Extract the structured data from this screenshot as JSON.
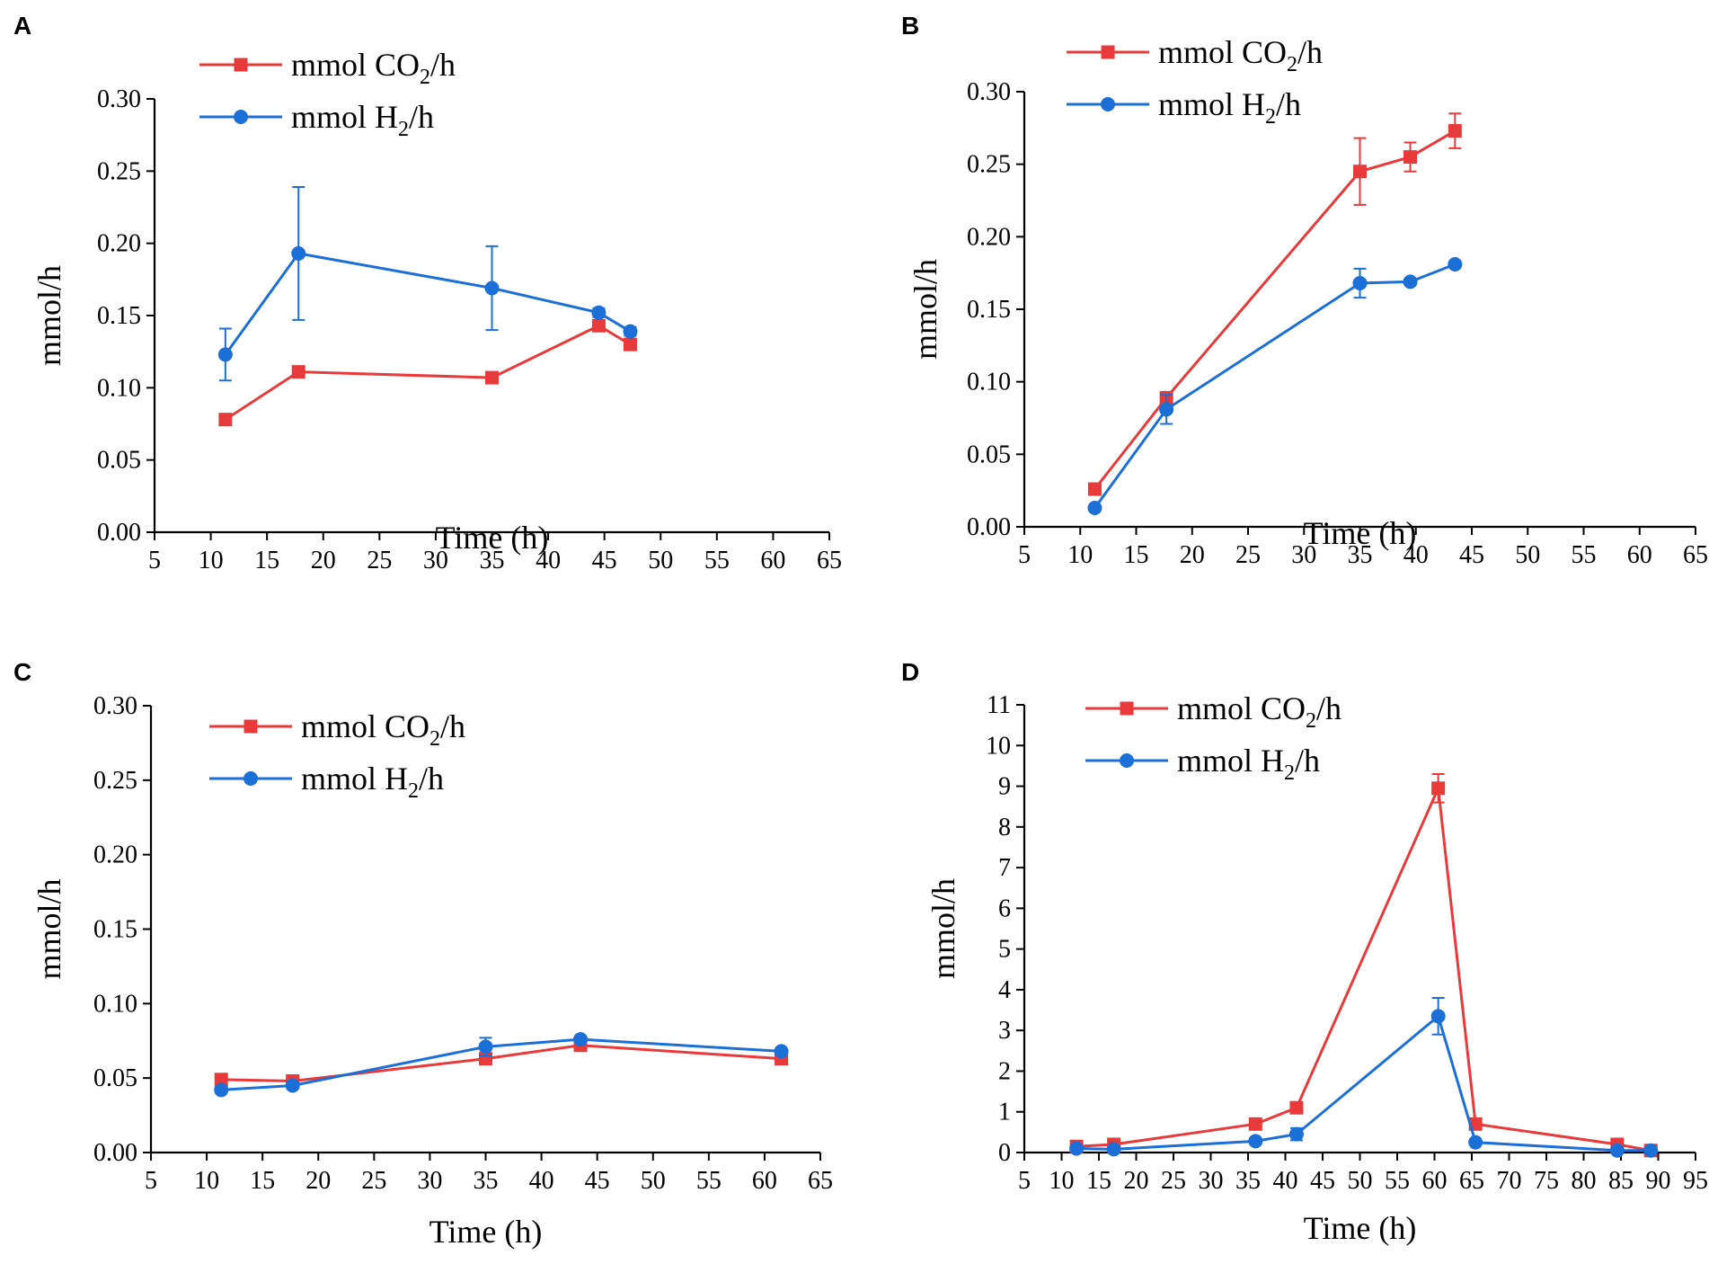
{
  "colors": {
    "co2": "#e8393b",
    "h2": "#1b6fd6"
  },
  "legend": {
    "co2": {
      "prefix": "mmol CO",
      "sub": "2",
      "suffix": "/h"
    },
    "h2": {
      "prefix": "mmol H",
      "sub": "2",
      "suffix": "/h"
    }
  },
  "chart_data": [
    {
      "type": "line",
      "panel": "A",
      "xlabel": "Time (h)",
      "ylabel": "mmol/h",
      "xlim": [
        5,
        65
      ],
      "ylim": [
        0,
        0.3
      ],
      "xticks": [
        "5",
        "10",
        "15",
        "20",
        "25",
        "30",
        "35",
        "40",
        "45",
        "50",
        "55",
        "60",
        "65"
      ],
      "yticks": [
        "0.00",
        "0.05",
        "0.10",
        "0.15",
        "0.20",
        "0.25",
        "0.30"
      ],
      "legend_position": "top-left",
      "series": [
        {
          "name": "mmol CO2/h",
          "marker": "square",
          "x": [
            11.3,
            17.8,
            35.0,
            44.5,
            47.3
          ],
          "y": [
            0.078,
            0.111,
            0.107,
            0.143,
            0.13
          ],
          "err": [
            0,
            0,
            0,
            0,
            0
          ]
        },
        {
          "name": "mmol H2/h",
          "marker": "circle",
          "x": [
            11.3,
            17.8,
            35.0,
            44.5,
            47.3
          ],
          "y": [
            0.123,
            0.193,
            0.169,
            0.152,
            0.139
          ],
          "err": [
            0.018,
            0.046,
            0.029,
            0.003,
            0.003
          ]
        }
      ]
    },
    {
      "type": "line",
      "panel": "B",
      "xlabel": "Time (h)",
      "ylabel": "mmol/h",
      "xlim": [
        5,
        65
      ],
      "ylim": [
        0,
        0.3
      ],
      "xticks": [
        "5",
        "10",
        "15",
        "20",
        "25",
        "30",
        "35",
        "40",
        "45",
        "50",
        "55",
        "60",
        "65"
      ],
      "yticks": [
        "0.00",
        "0.05",
        "0.10",
        "0.15",
        "0.20",
        "0.25",
        "0.30"
      ],
      "legend_position": "top-left",
      "series": [
        {
          "name": "mmol CO2/h",
          "marker": "square",
          "x": [
            11.3,
            17.7,
            35.0,
            39.5,
            43.5
          ],
          "y": [
            0.026,
            0.089,
            0.245,
            0.255,
            0.273
          ],
          "err": [
            0.002,
            0.003,
            0.023,
            0.01,
            0.012
          ]
        },
        {
          "name": "mmol H2/h",
          "marker": "circle",
          "x": [
            11.3,
            17.7,
            35.0,
            39.5,
            43.5
          ],
          "y": [
            0.013,
            0.081,
            0.168,
            0.169,
            0.181
          ],
          "err": [
            0.001,
            0.01,
            0.01,
            0.002,
            0.002
          ]
        }
      ]
    },
    {
      "type": "line",
      "panel": "C",
      "xlabel": "Time (h)",
      "ylabel": "mmol/h",
      "xlim": [
        5,
        65
      ],
      "ylim": [
        0,
        0.3
      ],
      "xticks": [
        "5",
        "10",
        "15",
        "20",
        "25",
        "30",
        "35",
        "40",
        "45",
        "50",
        "55",
        "60",
        "65"
      ],
      "yticks": [
        "0.00",
        "0.05",
        "0.10",
        "0.15",
        "0.20",
        "0.25",
        "0.30"
      ],
      "legend_position": "top-left",
      "series": [
        {
          "name": "mmol CO2/h",
          "marker": "square",
          "x": [
            11.3,
            17.7,
            35.0,
            43.5,
            61.5
          ],
          "y": [
            0.049,
            0.048,
            0.063,
            0.072,
            0.063
          ],
          "err": [
            0,
            0,
            0,
            0,
            0
          ]
        },
        {
          "name": "mmol H2/h",
          "marker": "circle",
          "x": [
            11.3,
            17.7,
            35.0,
            43.5,
            61.5
          ],
          "y": [
            0.042,
            0.045,
            0.071,
            0.076,
            0.068
          ],
          "err": [
            0.002,
            0.002,
            0.006,
            0.002,
            0.002
          ]
        }
      ]
    },
    {
      "type": "line",
      "panel": "D",
      "xlabel": "Time (h)",
      "ylabel": "mmol/h",
      "xlim": [
        5,
        95
      ],
      "ylim": [
        0,
        11
      ],
      "xticks": [
        "5",
        "10",
        "15",
        "20",
        "25",
        "30",
        "35",
        "40",
        "45",
        "50",
        "55",
        "60",
        "65",
        "70",
        "75",
        "80",
        "85",
        "90",
        "95"
      ],
      "yticks": [
        "0",
        "1",
        "2",
        "3",
        "4",
        "5",
        "6",
        "7",
        "8",
        "9",
        "10",
        "11"
      ],
      "legend_position": "top-left",
      "series": [
        {
          "name": "mmol CO2/h",
          "marker": "square",
          "x": [
            12,
            17,
            36,
            41.5,
            60.5,
            65.5,
            84.5,
            89
          ],
          "y": [
            0.15,
            0.2,
            0.7,
            1.1,
            8.95,
            0.7,
            0.2,
            0.05
          ],
          "err": [
            0,
            0,
            0,
            0,
            0.35,
            0,
            0,
            0
          ]
        },
        {
          "name": "mmol H2/h",
          "marker": "circle",
          "x": [
            12,
            17,
            36,
            41.5,
            60.5,
            65.5,
            84.5,
            89
          ],
          "y": [
            0.1,
            0.08,
            0.28,
            0.45,
            3.35,
            0.25,
            0.05,
            0.05
          ],
          "err": [
            0,
            0,
            0,
            0.15,
            0.45,
            0,
            0,
            0
          ]
        }
      ]
    }
  ]
}
